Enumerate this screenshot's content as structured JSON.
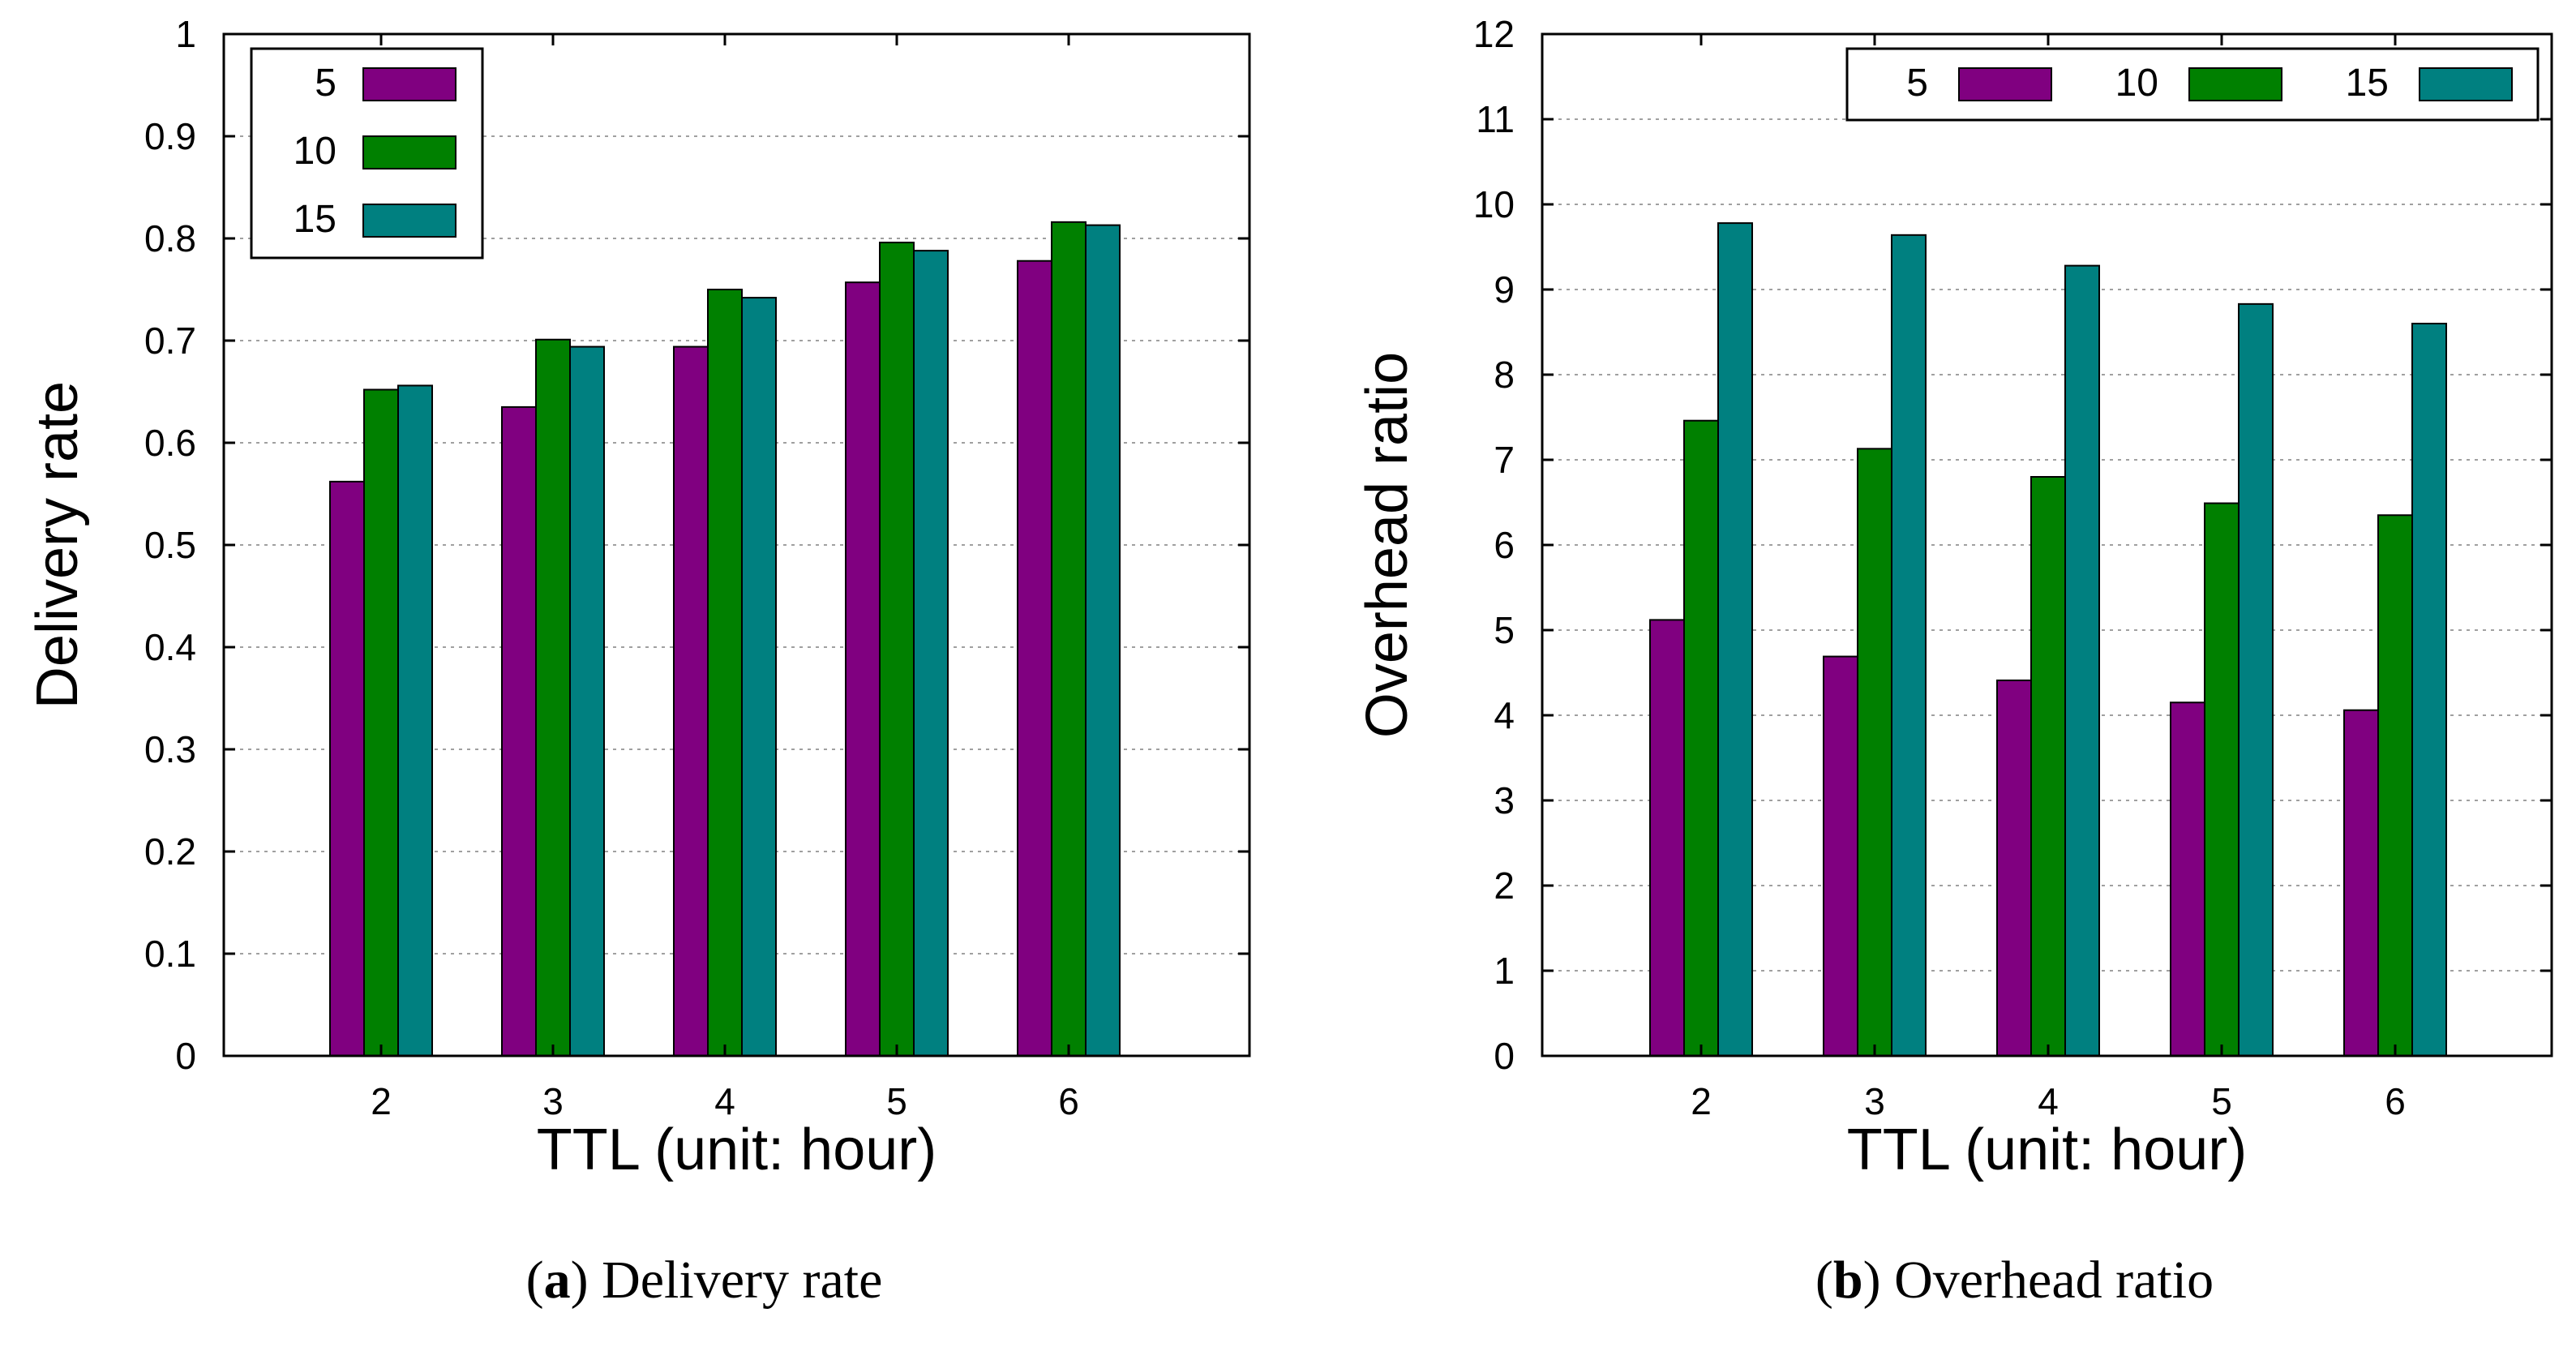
{
  "chart_data": [
    {
      "type": "bar",
      "title": "",
      "caption_label": "(a)",
      "caption_letter": "a",
      "caption_text": "Delivery rate",
      "xlabel": "TTL (unit: hour)",
      "ylabel": "Delivery rate",
      "categories": [
        "2",
        "3",
        "4",
        "5",
        "6"
      ],
      "ylim": [
        0,
        1
      ],
      "yticks": [
        "0",
        "0.1",
        "0.2",
        "0.3",
        "0.4",
        "0.5",
        "0.6",
        "0.7",
        "0.8",
        "0.9",
        "1"
      ],
      "ytick_values": [
        0,
        0.1,
        0.2,
        0.3,
        0.4,
        0.5,
        0.6,
        0.7,
        0.8,
        0.9,
        1.0
      ],
      "grid": true,
      "legend_position": "top-left",
      "legend_layout": "vertical",
      "series": [
        {
          "name": "5",
          "color": "#800080",
          "values": [
            0.562,
            0.635,
            0.694,
            0.757,
            0.778
          ]
        },
        {
          "name": "10",
          "color": "#008000",
          "values": [
            0.652,
            0.701,
            0.75,
            0.796,
            0.816
          ]
        },
        {
          "name": "15",
          "color": "#008080",
          "values": [
            0.656,
            0.694,
            0.742,
            0.788,
            0.813
          ]
        }
      ]
    },
    {
      "type": "bar",
      "title": "",
      "caption_label": "(b)",
      "caption_letter": "b",
      "caption_text": "Overhead ratio",
      "xlabel": "TTL (unit: hour)",
      "ylabel": "Overhead ratio",
      "categories": [
        "2",
        "3",
        "4",
        "5",
        "6"
      ],
      "ylim": [
        0,
        12
      ],
      "yticks": [
        "0",
        "1",
        "2",
        "3",
        "4",
        "5",
        "6",
        "7",
        "8",
        "9",
        "10",
        "11",
        "12"
      ],
      "ytick_values": [
        0,
        1,
        2,
        3,
        4,
        5,
        6,
        7,
        8,
        9,
        10,
        11,
        12
      ],
      "grid": true,
      "legend_position": "top-right",
      "legend_layout": "horizontal",
      "series": [
        {
          "name": "5",
          "color": "#800080",
          "values": [
            5.12,
            4.69,
            4.41,
            4.15,
            4.06
          ]
        },
        {
          "name": "10",
          "color": "#008000",
          "values": [
            7.46,
            7.13,
            6.8,
            6.49,
            6.35
          ]
        },
        {
          "name": "15",
          "color": "#008080",
          "values": [
            9.78,
            9.64,
            9.28,
            8.83,
            8.6
          ]
        }
      ]
    }
  ]
}
